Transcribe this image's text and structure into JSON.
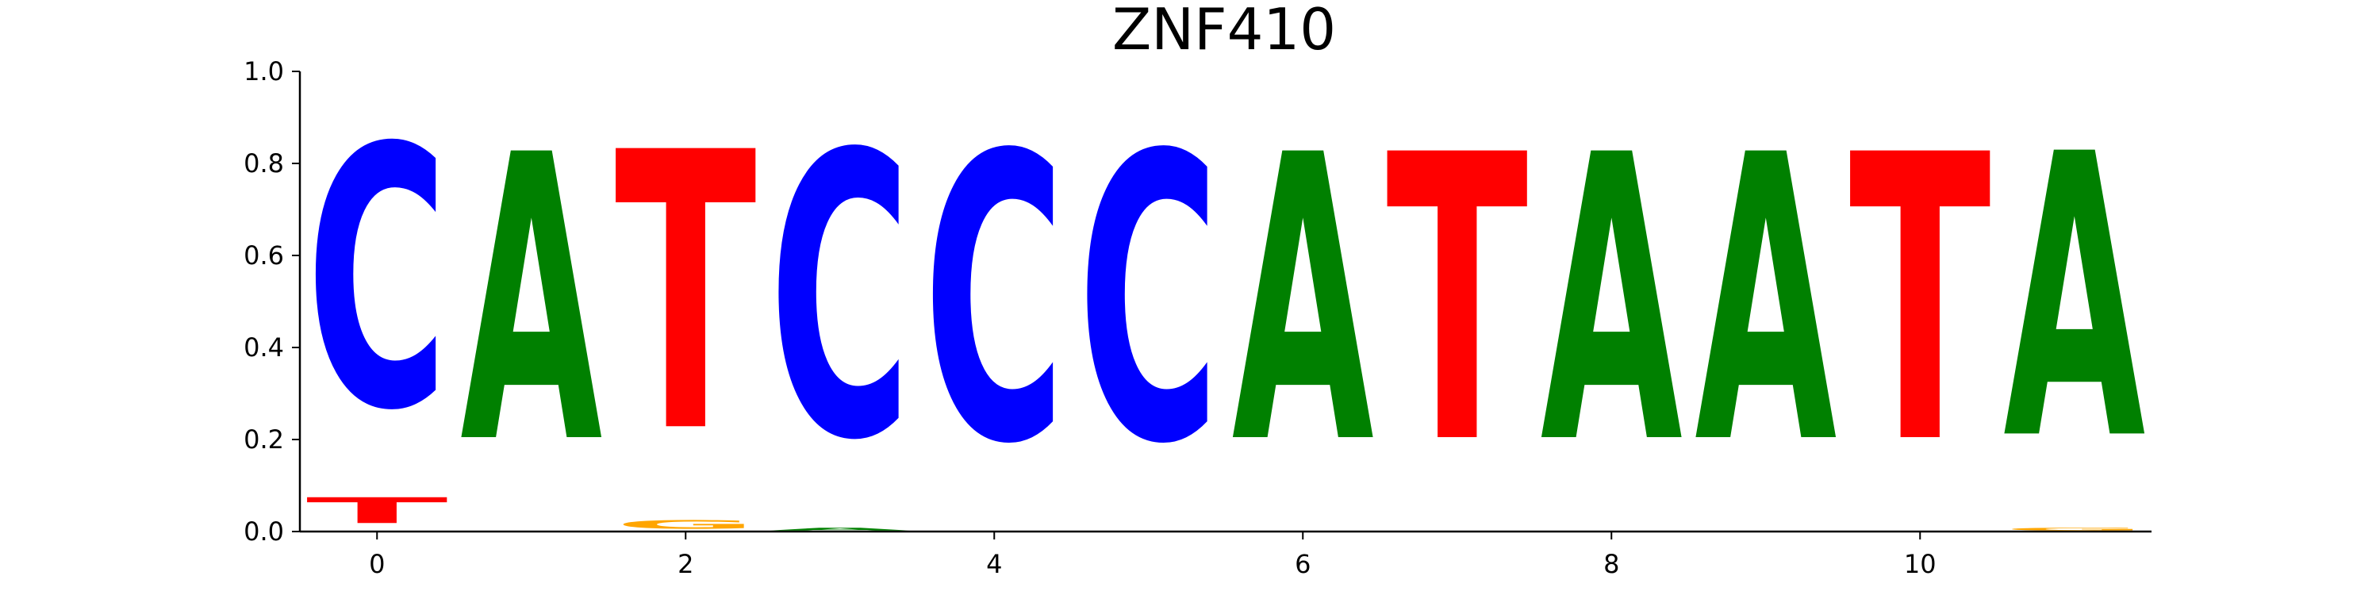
{
  "chart_data": {
    "type": "sequence-logo",
    "title": "ZNF410",
    "xlabel": "",
    "ylabel": "",
    "ylim": [
      0,
      1.0
    ],
    "xlim": [
      -0.5,
      11.5
    ],
    "y_ticks": [
      "0.0",
      "0.2",
      "0.4",
      "0.6",
      "0.8",
      "1.0"
    ],
    "y_tick_values": [
      0,
      0.2,
      0.4,
      0.6,
      0.8,
      1.0
    ],
    "x_ticks": [
      "0",
      "2",
      "4",
      "6",
      "8",
      "10"
    ],
    "x_tick_values": [
      0,
      2,
      4,
      6,
      8,
      10
    ],
    "grid": false,
    "colors": {
      "A": "#008000",
      "C": "#0000ff",
      "G": "#ffa500",
      "T": "#ff0000"
    },
    "positions": [
      {
        "position": 0,
        "letters": [
          {
            "base": "T",
            "value": 0.09
          },
          {
            "base": "C",
            "value": 0.91
          }
        ]
      },
      {
        "position": 1,
        "letters": [
          {
            "base": "A",
            "value": 1.0
          }
        ]
      },
      {
        "position": 2,
        "letters": [
          {
            "base": "G",
            "value": 0.03
          },
          {
            "base": "T",
            "value": 0.97
          }
        ]
      },
      {
        "position": 3,
        "letters": [
          {
            "base": "A",
            "value": 0.01
          },
          {
            "base": "C",
            "value": 0.99
          }
        ]
      },
      {
        "position": 4,
        "letters": [
          {
            "base": "C",
            "value": 1.0
          }
        ]
      },
      {
        "position": 5,
        "letters": [
          {
            "base": "C",
            "value": 1.0
          }
        ]
      },
      {
        "position": 6,
        "letters": [
          {
            "base": "A",
            "value": 1.0
          }
        ]
      },
      {
        "position": 7,
        "letters": [
          {
            "base": "T",
            "value": 1.0
          }
        ]
      },
      {
        "position": 8,
        "letters": [
          {
            "base": "A",
            "value": 1.0
          }
        ]
      },
      {
        "position": 9,
        "letters": [
          {
            "base": "A",
            "value": 1.0
          }
        ]
      },
      {
        "position": 10,
        "letters": [
          {
            "base": "T",
            "value": 1.0
          }
        ]
      },
      {
        "position": 11,
        "letters": [
          {
            "base": "G",
            "value": 0.01
          },
          {
            "base": "A",
            "value": 0.99
          }
        ]
      }
    ]
  }
}
